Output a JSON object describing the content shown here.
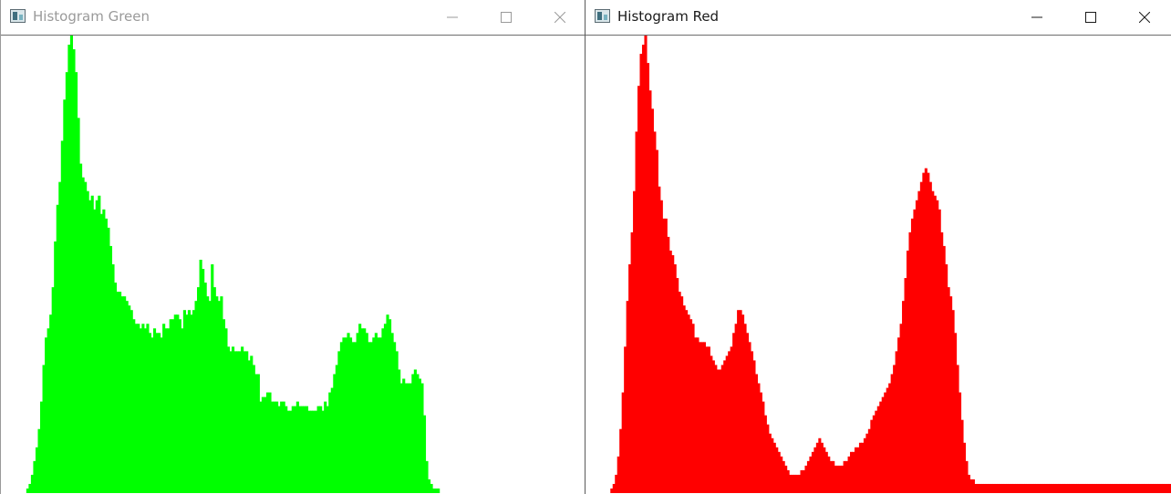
{
  "windows": {
    "green": {
      "title": "Histogram Green",
      "active": false,
      "controls": {
        "minimize": "minimize-icon",
        "maximize": "maximize-icon",
        "close": "close-icon"
      }
    },
    "red": {
      "title": "Histogram Red",
      "active": true,
      "controls": {
        "minimize": "minimize-icon",
        "maximize": "maximize-icon",
        "close": "close-icon"
      }
    }
  },
  "chart_data": [
    {
      "type": "bar",
      "title": "Histogram Green",
      "color": "#00ff00",
      "bins": 256,
      "ylim": [
        0,
        1
      ],
      "grid": false,
      "values": [
        0.0,
        0.0,
        0.0,
        0.0,
        0.0,
        0.0,
        0.0,
        0.0,
        0.0,
        0.0,
        0.0,
        0.01,
        0.02,
        0.04,
        0.07,
        0.1,
        0.14,
        0.2,
        0.28,
        0.34,
        0.36,
        0.39,
        0.45,
        0.55,
        0.63,
        0.68,
        0.77,
        0.86,
        0.92,
        0.98,
        1.0,
        0.97,
        0.92,
        0.82,
        0.72,
        0.69,
        0.68,
        0.66,
        0.64,
        0.65,
        0.62,
        0.64,
        0.65,
        0.61,
        0.62,
        0.6,
        0.58,
        0.54,
        0.5,
        0.46,
        0.44,
        0.44,
        0.43,
        0.43,
        0.42,
        0.41,
        0.4,
        0.38,
        0.37,
        0.37,
        0.36,
        0.37,
        0.36,
        0.37,
        0.35,
        0.34,
        0.36,
        0.35,
        0.35,
        0.34,
        0.37,
        0.36,
        0.36,
        0.38,
        0.38,
        0.39,
        0.39,
        0.38,
        0.36,
        0.4,
        0.39,
        0.4,
        0.39,
        0.4,
        0.42,
        0.45,
        0.51,
        0.49,
        0.46,
        0.43,
        0.42,
        0.5,
        0.45,
        0.43,
        0.42,
        0.43,
        0.38,
        0.36,
        0.32,
        0.31,
        0.32,
        0.31,
        0.31,
        0.31,
        0.32,
        0.31,
        0.31,
        0.29,
        0.3,
        0.28,
        0.26,
        0.26,
        0.2,
        0.21,
        0.21,
        0.22,
        0.22,
        0.2,
        0.2,
        0.2,
        0.19,
        0.2,
        0.2,
        0.19,
        0.18,
        0.18,
        0.19,
        0.19,
        0.2,
        0.19,
        0.19,
        0.19,
        0.19,
        0.18,
        0.18,
        0.18,
        0.18,
        0.19,
        0.19,
        0.18,
        0.2,
        0.19,
        0.22,
        0.23,
        0.26,
        0.28,
        0.31,
        0.33,
        0.34,
        0.34,
        0.35,
        0.34,
        0.33,
        0.33,
        0.35,
        0.37,
        0.36,
        0.36,
        0.35,
        0.33,
        0.33,
        0.34,
        0.35,
        0.34,
        0.34,
        0.36,
        0.37,
        0.39,
        0.38,
        0.35,
        0.33,
        0.31,
        0.27,
        0.24,
        0.25,
        0.24,
        0.24,
        0.24,
        0.26,
        0.27,
        0.26,
        0.25,
        0.24,
        0.17,
        0.07,
        0.03,
        0.02,
        0.01,
        0.01,
        0.01,
        0.0,
        0.0,
        0.0,
        0.0,
        0.0,
        0.0,
        0.0,
        0.0,
        0.0,
        0.0,
        0.0,
        0.0,
        0.0,
        0.0,
        0.0,
        0.0,
        0.0,
        0.0,
        0.0,
        0.0,
        0.0,
        0.0,
        0.0,
        0.0,
        0.0,
        0.0,
        0.0,
        0.0,
        0.0,
        0.0,
        0.0,
        0.0,
        0.0,
        0.0,
        0.0,
        0.0,
        0.0,
        0.0,
        0.0,
        0.0,
        0.0,
        0.0,
        0.0,
        0.0,
        0.0,
        0.0,
        0.0,
        0.0,
        0.0,
        0.0,
        0.0,
        0.0,
        0.0,
        0.0,
        0.0,
        0.0,
        0.0,
        0.0,
        0.0,
        0.0,
        0.0,
        0.0,
        0.0
      ]
    },
    {
      "type": "bar",
      "title": "Histogram Red",
      "color": "#ff0000",
      "bins": 256,
      "ylim": [
        0,
        1
      ],
      "grid": false,
      "values": [
        0.0,
        0.0,
        0.0,
        0.0,
        0.0,
        0.0,
        0.0,
        0.0,
        0.0,
        0.0,
        0.0,
        0.01,
        0.02,
        0.04,
        0.08,
        0.14,
        0.22,
        0.32,
        0.42,
        0.5,
        0.57,
        0.66,
        0.79,
        0.89,
        0.96,
        0.98,
        1.0,
        0.94,
        0.88,
        0.84,
        0.79,
        0.75,
        0.67,
        0.64,
        0.6,
        0.6,
        0.56,
        0.53,
        0.52,
        0.5,
        0.47,
        0.44,
        0.43,
        0.41,
        0.4,
        0.39,
        0.38,
        0.37,
        0.34,
        0.34,
        0.33,
        0.33,
        0.33,
        0.32,
        0.32,
        0.3,
        0.29,
        0.28,
        0.27,
        0.27,
        0.28,
        0.29,
        0.3,
        0.31,
        0.32,
        0.35,
        0.37,
        0.4,
        0.4,
        0.39,
        0.37,
        0.35,
        0.33,
        0.31,
        0.29,
        0.26,
        0.24,
        0.22,
        0.2,
        0.17,
        0.15,
        0.13,
        0.12,
        0.11,
        0.1,
        0.09,
        0.08,
        0.07,
        0.06,
        0.05,
        0.04,
        0.04,
        0.04,
        0.04,
        0.04,
        0.05,
        0.05,
        0.06,
        0.07,
        0.08,
        0.09,
        0.1,
        0.11,
        0.12,
        0.11,
        0.1,
        0.09,
        0.08,
        0.07,
        0.07,
        0.06,
        0.06,
        0.06,
        0.06,
        0.07,
        0.07,
        0.08,
        0.09,
        0.09,
        0.1,
        0.1,
        0.11,
        0.11,
        0.12,
        0.13,
        0.14,
        0.16,
        0.17,
        0.18,
        0.19,
        0.2,
        0.21,
        0.22,
        0.23,
        0.24,
        0.26,
        0.28,
        0.31,
        0.34,
        0.37,
        0.42,
        0.47,
        0.53,
        0.57,
        0.6,
        0.62,
        0.64,
        0.66,
        0.68,
        0.7,
        0.71,
        0.7,
        0.68,
        0.66,
        0.65,
        0.64,
        0.62,
        0.57,
        0.54,
        0.5,
        0.45,
        0.43,
        0.4,
        0.35,
        0.28,
        0.22,
        0.16,
        0.11,
        0.07,
        0.04,
        0.03,
        0.03,
        0.02,
        0.02,
        0.02,
        0.02,
        0.02,
        0.02,
        0.02,
        0.02,
        0.02,
        0.02,
        0.02,
        0.02,
        0.02,
        0.02,
        0.02,
        0.02,
        0.02,
        0.02,
        0.02,
        0.02,
        0.02,
        0.02,
        0.02,
        0.02,
        0.02,
        0.02,
        0.02,
        0.02,
        0.02,
        0.02,
        0.02,
        0.02,
        0.02,
        0.02,
        0.02,
        0.02,
        0.02,
        0.02,
        0.02,
        0.02,
        0.02,
        0.02,
        0.02,
        0.02,
        0.02,
        0.02,
        0.02,
        0.02,
        0.02,
        0.02,
        0.02,
        0.02,
        0.02,
        0.02,
        0.02,
        0.02,
        0.02,
        0.02,
        0.02,
        0.02,
        0.02,
        0.02,
        0.02,
        0.02,
        0.02,
        0.02,
        0.02,
        0.02,
        0.02,
        0.02,
        0.02,
        0.02,
        0.02,
        0.02,
        0.02,
        0.02,
        0.02,
        0.02,
        0.02,
        0.02,
        0.02,
        0.02,
        0.02,
        0.02,
        0.02,
        0.02,
        0.02
      ]
    }
  ]
}
